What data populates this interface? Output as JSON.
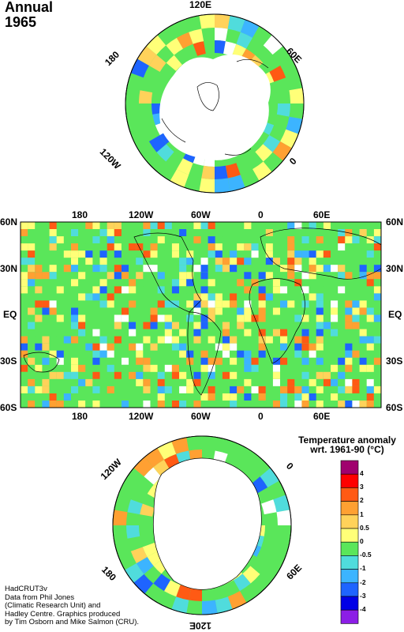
{
  "header": {
    "line1": "Annual",
    "line2": "1965"
  },
  "north_polar": {
    "labels": {
      "top": "120E",
      "left": "180",
      "right": "60E",
      "bottom_left": "120W",
      "bottom_right": "0"
    }
  },
  "world_map": {
    "top_lon_labels": [
      "180",
      "120W",
      "60W",
      "0",
      "60E"
    ],
    "bottom_lon_labels": [
      "180",
      "120W",
      "60W",
      "0",
      "60E"
    ],
    "lat_labels": [
      "60N",
      "30N",
      "EQ",
      "30S",
      "60S"
    ]
  },
  "south_polar": {
    "labels": {
      "top_left": "120W",
      "top_right": "0",
      "left": "180",
      "right": "60E",
      "bottom": "120E"
    }
  },
  "legend": {
    "title_line1": "Temperature anomaly",
    "title_line2": "wrt. 1961-90  (°C)",
    "bins": [
      {
        "label": "4",
        "color": "#a0006e"
      },
      {
        "label": "3",
        "color": "#ff0000"
      },
      {
        "label": "2",
        "color": "#ff5a14"
      },
      {
        "label": "1",
        "color": "#ffa032"
      },
      {
        "label": "0.5",
        "color": "#ffd25a"
      },
      {
        "label": "0",
        "color": "#ffff78"
      },
      {
        "label": "-0.5",
        "color": "#5ae65a"
      },
      {
        "label": "-1",
        "color": "#50dcdc"
      },
      {
        "label": "-2",
        "color": "#3cb4ff"
      },
      {
        "label": "-3",
        "color": "#1e64ff"
      },
      {
        "label": "-4",
        "color": "#0000e6"
      },
      {
        "label": "",
        "color": "#8c1ee6"
      }
    ]
  },
  "credit": {
    "line1": "HadCRUT3v",
    "line2": "Data from Phil Jones",
    "line3": "(Climatic Research Unit) and",
    "line4": "Hadley Centre.  Graphics produced",
    "line5": "by Tim Osborn and Mike Salmon (CRU)."
  }
}
